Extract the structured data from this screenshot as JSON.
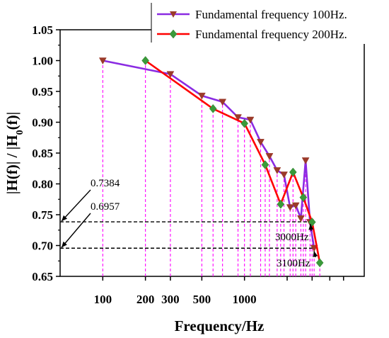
{
  "chart_data": {
    "type": "line",
    "xlabel": "Frequency/Hz",
    "ylabel": "|H(f)| / |H0(f)|",
    "ylabel_parts": {
      "pre": "|H(f)| / |H",
      "sub": "0",
      "post": "(f)|"
    },
    "x_scale": "log",
    "xlim": [
      50,
      7000
    ],
    "ylim": [
      0.65,
      1.05
    ],
    "x_ticks": [
      100,
      200,
      300,
      500,
      1000
    ],
    "x_tick_labels": [
      "100",
      "200",
      "300",
      "500",
      "1000"
    ],
    "y_ticks": [
      0.65,
      0.7,
      0.75,
      0.8,
      0.85,
      0.9,
      0.95,
      1.0,
      1.05
    ],
    "y_tick_labels": [
      "0.65",
      "0.70",
      "0.75",
      "0.80",
      "0.85",
      "0.90",
      "0.95",
      "1.00",
      "1.05"
    ],
    "grid": false,
    "legend_position": "top-right",
    "series": [
      {
        "name": "Fundamental frequency 100Hz.",
        "color": "#8a2be2",
        "marker": "triangle-down",
        "marker_color": "#9b3a2a",
        "x": [
          100,
          300,
          500,
          700,
          900,
          1100,
          1300,
          1500,
          1700,
          1900,
          2100,
          2300,
          2500,
          2700,
          2900,
          3100
        ],
        "y": [
          1.0,
          0.978,
          0.943,
          0.933,
          0.908,
          0.904,
          0.868,
          0.845,
          0.822,
          0.815,
          0.762,
          0.765,
          0.744,
          0.838,
          0.738,
          0.696
        ]
      },
      {
        "name": "Fundamental frequency 200Hz.",
        "color": "#ff0000",
        "marker": "diamond",
        "marker_color": "#3a9a3a",
        "x": [
          200,
          600,
          1000,
          1400,
          1800,
          2200,
          2600,
          3000,
          3400
        ],
        "y": [
          1.0,
          0.922,
          0.898,
          0.831,
          0.767,
          0.819,
          0.778,
          0.738,
          0.672
        ]
      }
    ],
    "annotations": [
      {
        "text": "0.7384",
        "y": 0.7384,
        "ref_x": 2900
      },
      {
        "text": "0.6957",
        "y": 0.6957,
        "ref_x": 3100
      },
      {
        "text": "3000Hz",
        "ref_x": 2950,
        "ref_y": 0.7384
      },
      {
        "text": "3100Hz",
        "ref_x": 3130,
        "ref_y": 0.6957
      }
    ],
    "guide_color": "#ff00ff"
  }
}
